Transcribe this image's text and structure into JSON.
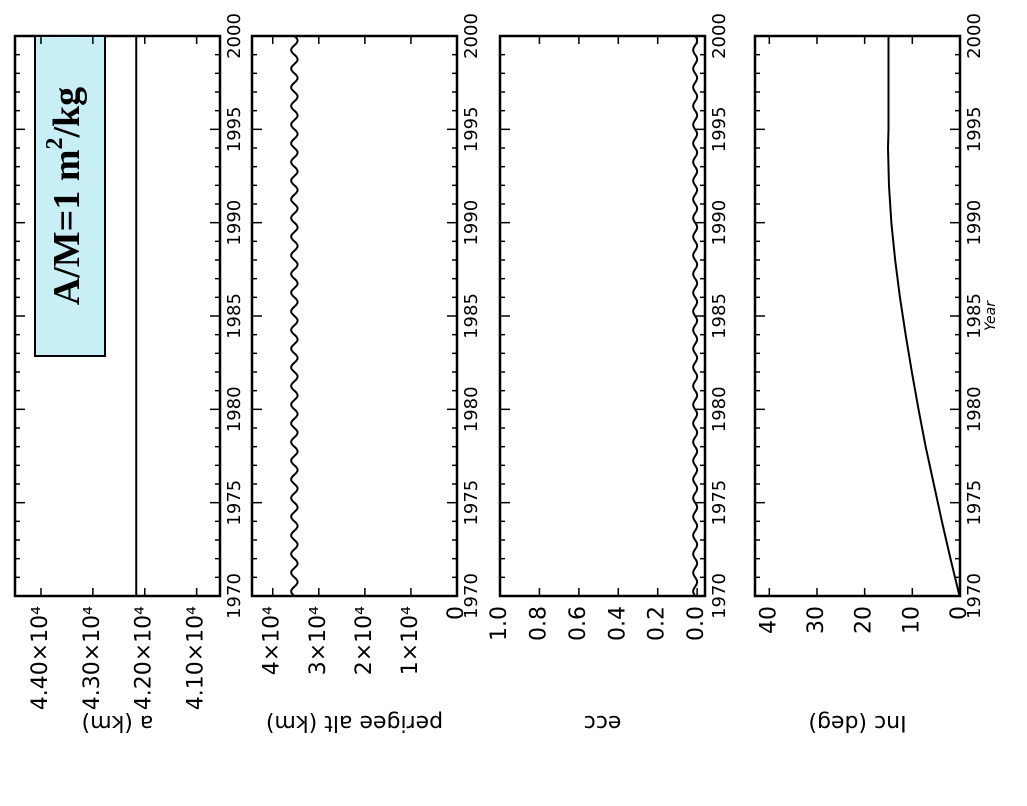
{
  "chart_data": [
    {
      "type": "line",
      "ylabel": "a (km)",
      "y_tick_labels": [
        "4.10×10⁴",
        "4.20×10⁴",
        "4.30×10⁴",
        "4.40×10⁴"
      ],
      "ylim": [
        40550,
        44500
      ],
      "xlim": [
        1970,
        2000
      ],
      "x_tick_labels": [
        "1970",
        "1975",
        "1980",
        "1985",
        "1990",
        "1995",
        "2000"
      ],
      "series": [
        {
          "x": [
            1970,
            2000
          ],
          "y": [
            42164,
            42164
          ]
        }
      ],
      "annotation": {
        "text_main": "A/M=1 m",
        "sup": "2",
        "text_tail": "/kg",
        "fill": "#c8eef6"
      }
    },
    {
      "type": "line",
      "ylabel": "perigee alt (km)",
      "y_tick_labels": [
        "0",
        "1×10⁴",
        "2×10⁴",
        "3×10⁴",
        "4×10⁴"
      ],
      "ylim": [
        0,
        44500
      ],
      "xlim": [
        1970,
        2000
      ],
      "x_tick_labels": [
        "1970",
        "1975",
        "1980",
        "1985",
        "1990",
        "1995",
        "2000"
      ],
      "series": [
        {
          "x_start": 1970,
          "x_end": 2000,
          "mean": 35300,
          "amplitude": 700,
          "period_years": 1
        }
      ]
    },
    {
      "type": "line",
      "ylabel": "ecc",
      "y_tick_labels": [
        "0.0",
        "0.2",
        "0.4",
        "0.6",
        "0.8",
        "1.0"
      ],
      "ylim": [
        -0.04,
        1.0
      ],
      "xlim": [
        1970,
        2000
      ],
      "x_tick_labels": [
        "1970",
        "1975",
        "1980",
        "1985",
        "1990",
        "1995",
        "2000"
      ],
      "series": [
        {
          "x_start": 1970,
          "x_end": 2000,
          "mean": 0.01,
          "amplitude": 0.01,
          "period_years": 1
        }
      ]
    },
    {
      "type": "line",
      "ylabel": "Inc (deg)",
      "xlabel": "Year",
      "y_tick_labels": [
        "0",
        "10",
        "20",
        "30",
        "40"
      ],
      "ylim": [
        0,
        43
      ],
      "xlim": [
        1970,
        2000
      ],
      "x_tick_labels": [
        "1970",
        "1975",
        "1980",
        "1985",
        "1990",
        "1995",
        "2000"
      ],
      "series": [
        {
          "x": [
            1970,
            1972,
            1974,
            1976,
            1978,
            1980,
            1982,
            1984,
            1986,
            1988,
            1990,
            1992,
            1994,
            1995,
            1997,
            1999,
            2000
          ],
          "y": [
            0.1,
            2.0,
            3.8,
            5.5,
            7.2,
            8.7,
            10.1,
            11.4,
            12.6,
            13.6,
            14.4,
            14.9,
            15.1,
            15.0,
            15.0,
            15.0,
            15.0
          ]
        }
      ]
    }
  ]
}
